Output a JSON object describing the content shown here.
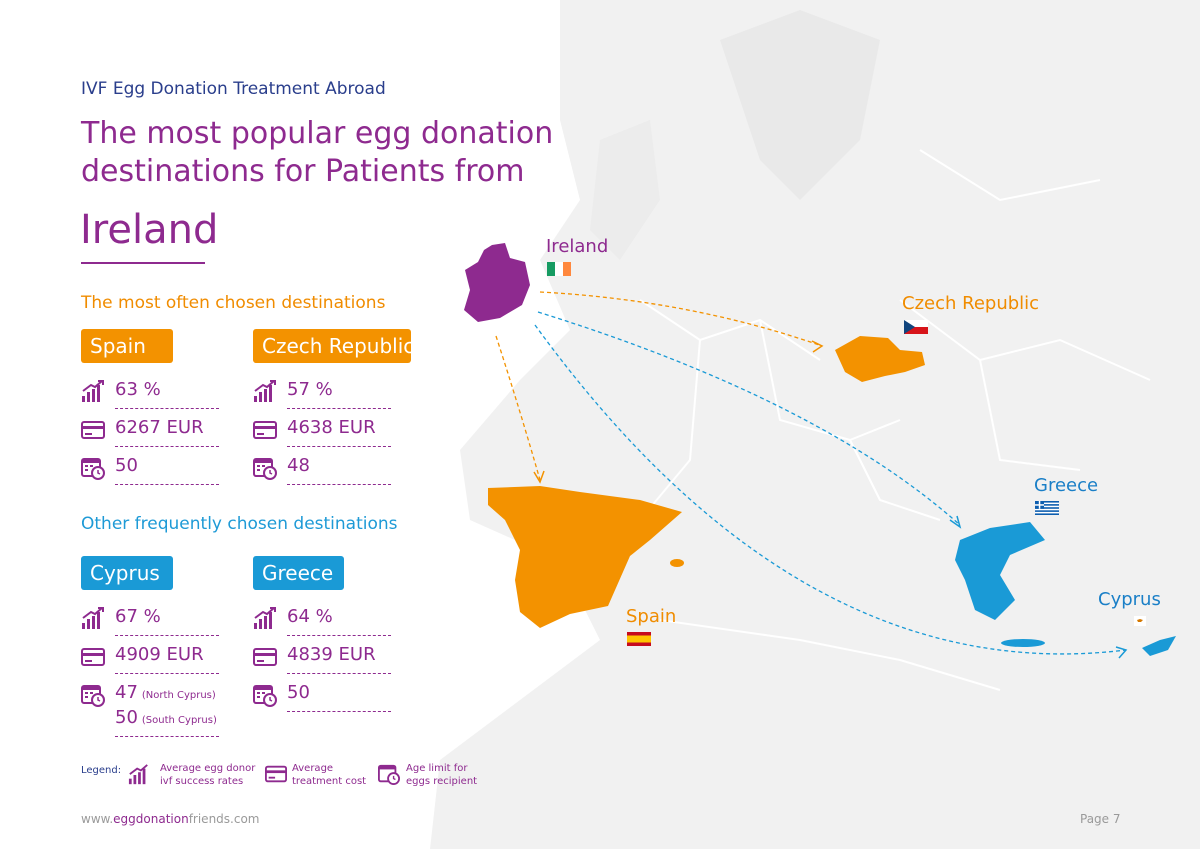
{
  "header": {
    "sup_title": "IVF Egg Donation Treatment Abroad",
    "headline": "The most popular egg donation destinations for Patients from",
    "country": "Ireland"
  },
  "sections": {
    "most_chosen": "The most often chosen destinations",
    "other_chosen": "Other frequently chosen destinations"
  },
  "destinations": {
    "spain": {
      "name": "Spain",
      "success_rate": "63 %",
      "cost": "6267 EUR",
      "age_limit": "50"
    },
    "czech": {
      "name": "Czech Republic",
      "success_rate": "57 %",
      "cost": "4638 EUR",
      "age_limit": "48"
    },
    "cyprus": {
      "name": "Cyprus",
      "success_rate": "67 %",
      "cost": "4909 EUR",
      "age_limit_north": "47",
      "north_note": "(North Cyprus)",
      "age_limit_south": "50",
      "south_note": "(South Cyprus)"
    },
    "greece": {
      "name": "Greece",
      "success_rate": "64 %",
      "cost": "4839 EUR",
      "age_limit": "50"
    }
  },
  "legend": {
    "label": "Legend:",
    "success": "Average egg donor ivf success rates",
    "cost": "Average treatment cost",
    "age": "Age limit for eggs recipient"
  },
  "map_labels": {
    "ireland": "Ireland",
    "czech": "Czech Republic",
    "spain": "Spain",
    "greece": "Greece",
    "cyprus": "Cyprus"
  },
  "icons": {
    "success": "bar-chart-up-icon",
    "cost": "credit-card-icon",
    "age": "calendar-clock-icon"
  },
  "colors": {
    "purple": "#8e2a8f",
    "orange": "#f39200",
    "blue": "#1a9ad6",
    "navy": "#2a3e8c",
    "land": "#f1f1f1"
  },
  "footer": {
    "url_prefix": "www.",
    "url_brand": "eggdonation",
    "url_suffix": "friends.com",
    "page": "Page 7"
  }
}
